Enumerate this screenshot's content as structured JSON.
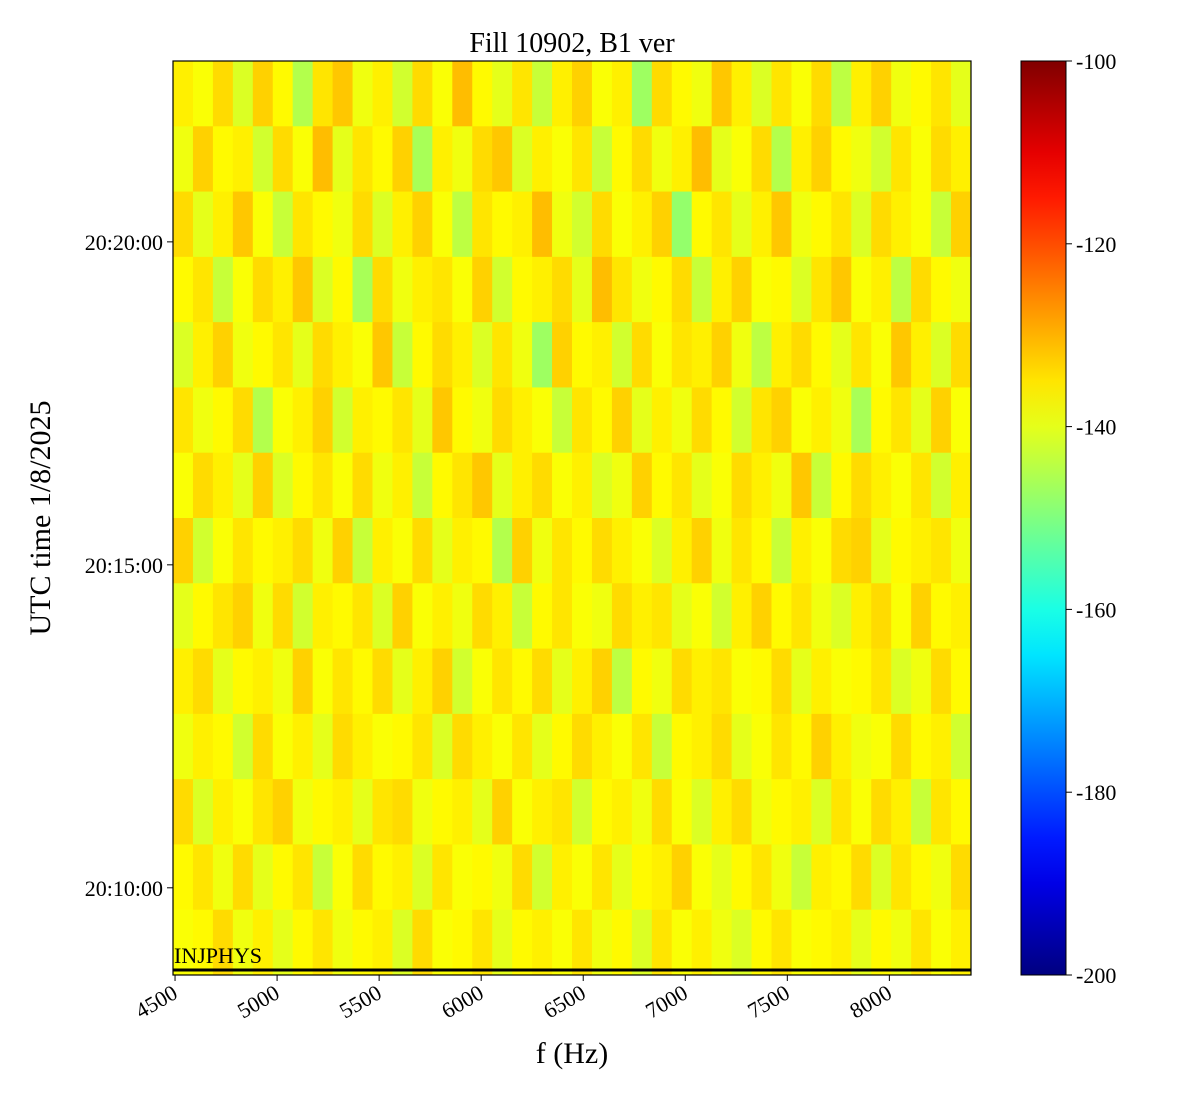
{
  "chart_data": {
    "type": "heatmap",
    "title": "Fill 10902, B1 ver",
    "x_label": "f (Hz)",
    "y_label": "UTC time 1/8/2025",
    "annotation": "INJPHYS",
    "xlim": [
      4490,
      8400
    ],
    "xticks": [
      4500,
      5000,
      5500,
      6000,
      6500,
      7000,
      7500,
      8000
    ],
    "ylim": [
      72519,
      73368
    ],
    "yticks": [
      {
        "value": 72600,
        "label": "20:10:00"
      },
      {
        "value": 72900,
        "label": "20:15:00"
      },
      {
        "value": 73200,
        "label": "20:20:00"
      }
    ],
    "clim": [
      -200,
      -100
    ],
    "cticks": [
      -200,
      -180,
      -160,
      -140,
      -120,
      -100
    ],
    "colormap": "jet",
    "z": [
      [
        -136,
        -138,
        -134,
        -141,
        -133,
        -137,
        -145,
        -135,
        -132,
        -139,
        -136,
        -142,
        -134,
        -138,
        -131,
        -137,
        -140,
        -135,
        -143,
        -136,
        -133,
        -138,
        -136,
        -147,
        -134,
        -137,
        -139,
        -132,
        -136,
        -141,
        -135,
        -138,
        -134,
        -144,
        -136,
        -133,
        -139,
        -137,
        -135,
        -140
      ],
      [
        -139,
        -133,
        -137,
        -136,
        -142,
        -134,
        -138,
        -131,
        -140,
        -135,
        -137,
        -133,
        -146,
        -136,
        -139,
        -134,
        -132,
        -141,
        -136,
        -138,
        -135,
        -143,
        -137,
        -134,
        -139,
        -136,
        -131,
        -140,
        -138,
        -134,
        -145,
        -136,
        -133,
        -137,
        -139,
        -142,
        -135,
        -138,
        -134,
        -136
      ],
      [
        -134,
        -140,
        -136,
        -132,
        -138,
        -143,
        -135,
        -137,
        -139,
        -134,
        -141,
        -136,
        -133,
        -138,
        -144,
        -135,
        -137,
        -136,
        -131,
        -139,
        -142,
        -134,
        -138,
        -136,
        -133,
        -148,
        -137,
        -135,
        -140,
        -136,
        -132,
        -139,
        -137,
        -135,
        -141,
        -134,
        -136,
        -138,
        -143,
        -133
      ],
      [
        -137,
        -135,
        -143,
        -138,
        -134,
        -136,
        -132,
        -141,
        -137,
        -146,
        -134,
        -139,
        -136,
        -135,
        -138,
        -133,
        -142,
        -137,
        -136,
        -134,
        -140,
        -131,
        -135,
        -139,
        -137,
        -134,
        -143,
        -136,
        -133,
        -138,
        -137,
        -141,
        -135,
        -132,
        -138,
        -136,
        -144,
        -134,
        -137,
        -139
      ],
      [
        -141,
        -136,
        -133,
        -139,
        -137,
        -135,
        -140,
        -134,
        -136,
        -138,
        -132,
        -143,
        -137,
        -134,
        -136,
        -141,
        -135,
        -139,
        -147,
        -133,
        -137,
        -136,
        -142,
        -134,
        -138,
        -135,
        -136,
        -133,
        -139,
        -144,
        -136,
        -134,
        -137,
        -140,
        -135,
        -138,
        -132,
        -136,
        -141,
        -134
      ],
      [
        -135,
        -139,
        -137,
        -134,
        -145,
        -138,
        -136,
        -133,
        -142,
        -136,
        -137,
        -135,
        -140,
        -132,
        -137,
        -139,
        -134,
        -136,
        -138,
        -143,
        -135,
        -137,
        -133,
        -140,
        -136,
        -139,
        -134,
        -137,
        -142,
        -135,
        -133,
        -138,
        -136,
        -139,
        -146,
        -137,
        -135,
        -140,
        -133,
        -138
      ],
      [
        -138,
        -134,
        -136,
        -140,
        -133,
        -141,
        -137,
        -135,
        -138,
        -134,
        -139,
        -136,
        -143,
        -137,
        -135,
        -132,
        -140,
        -136,
        -134,
        -138,
        -136,
        -141,
        -139,
        -133,
        -137,
        -135,
        -140,
        -138,
        -134,
        -136,
        -139,
        -132,
        -143,
        -137,
        -134,
        -136,
        -138,
        -135,
        -142,
        -136
      ],
      [
        -133,
        -142,
        -138,
        -135,
        -137,
        -136,
        -134,
        -139,
        -133,
        -143,
        -136,
        -138,
        -134,
        -140,
        -136,
        -137,
        -145,
        -133,
        -139,
        -135,
        -137,
        -134,
        -136,
        -138,
        -141,
        -136,
        -133,
        -139,
        -135,
        -137,
        -143,
        -136,
        -138,
        -134,
        -133,
        -140,
        -137,
        -136,
        -135,
        -139
      ],
      [
        -140,
        -137,
        -135,
        -133,
        -139,
        -134,
        -142,
        -136,
        -137,
        -135,
        -141,
        -133,
        -138,
        -136,
        -139,
        -134,
        -136,
        -143,
        -137,
        -135,
        -138,
        -139,
        -134,
        -136,
        -135,
        -140,
        -138,
        -142,
        -136,
        -133,
        -137,
        -135,
        -139,
        -141,
        -136,
        -134,
        -138,
        -133,
        -137,
        -136
      ],
      [
        -136,
        -134,
        -140,
        -137,
        -136,
        -139,
        -133,
        -138,
        -135,
        -137,
        -134,
        -140,
        -136,
        -133,
        -142,
        -138,
        -135,
        -137,
        -134,
        -140,
        -136,
        -133,
        -144,
        -137,
        -139,
        -134,
        -136,
        -135,
        -138,
        -137,
        -134,
        -140,
        -136,
        -138,
        -137,
        -135,
        -141,
        -139,
        -134,
        -137
      ],
      [
        -139,
        -136,
        -137,
        -142,
        -134,
        -138,
        -136,
        -140,
        -134,
        -136,
        -138,
        -137,
        -135,
        -141,
        -134,
        -136,
        -138,
        -135,
        -140,
        -137,
        -134,
        -136,
        -138,
        -135,
        -143,
        -137,
        -136,
        -134,
        -140,
        -138,
        -135,
        -137,
        -133,
        -136,
        -139,
        -138,
        -134,
        -137,
        -136,
        -142
      ],
      [
        -134,
        -141,
        -136,
        -138,
        -135,
        -133,
        -139,
        -137,
        -136,
        -140,
        -135,
        -134,
        -139,
        -137,
        -136,
        -140,
        -133,
        -138,
        -136,
        -135,
        -142,
        -137,
        -136,
        -139,
        -134,
        -138,
        -141,
        -136,
        -134,
        -139,
        -137,
        -136,
        -141,
        -135,
        -138,
        -134,
        -136,
        -143,
        -135,
        -137
      ],
      [
        -137,
        -135,
        -139,
        -134,
        -140,
        -137,
        -135,
        -143,
        -138,
        -134,
        -137,
        -136,
        -141,
        -135,
        -138,
        -137,
        -139,
        -134,
        -142,
        -136,
        -138,
        -135,
        -140,
        -137,
        -136,
        -133,
        -138,
        -140,
        -137,
        -135,
        -139,
        -143,
        -136,
        -137,
        -134,
        -141,
        -135,
        -137,
        -139,
        -134
      ],
      [
        -138,
        -137,
        -134,
        -139,
        -136,
        -140,
        -137,
        -135,
        -139,
        -137,
        -136,
        -141,
        -134,
        -138,
        -137,
        -135,
        -140,
        -137,
        -136,
        -138,
        -135,
        -139,
        -137,
        -141,
        -135,
        -138,
        -136,
        -139,
        -141,
        -137,
        -135,
        -138,
        -137,
        -136,
        -140,
        -137,
        -139,
        -135,
        -138,
        -136
      ]
    ]
  }
}
